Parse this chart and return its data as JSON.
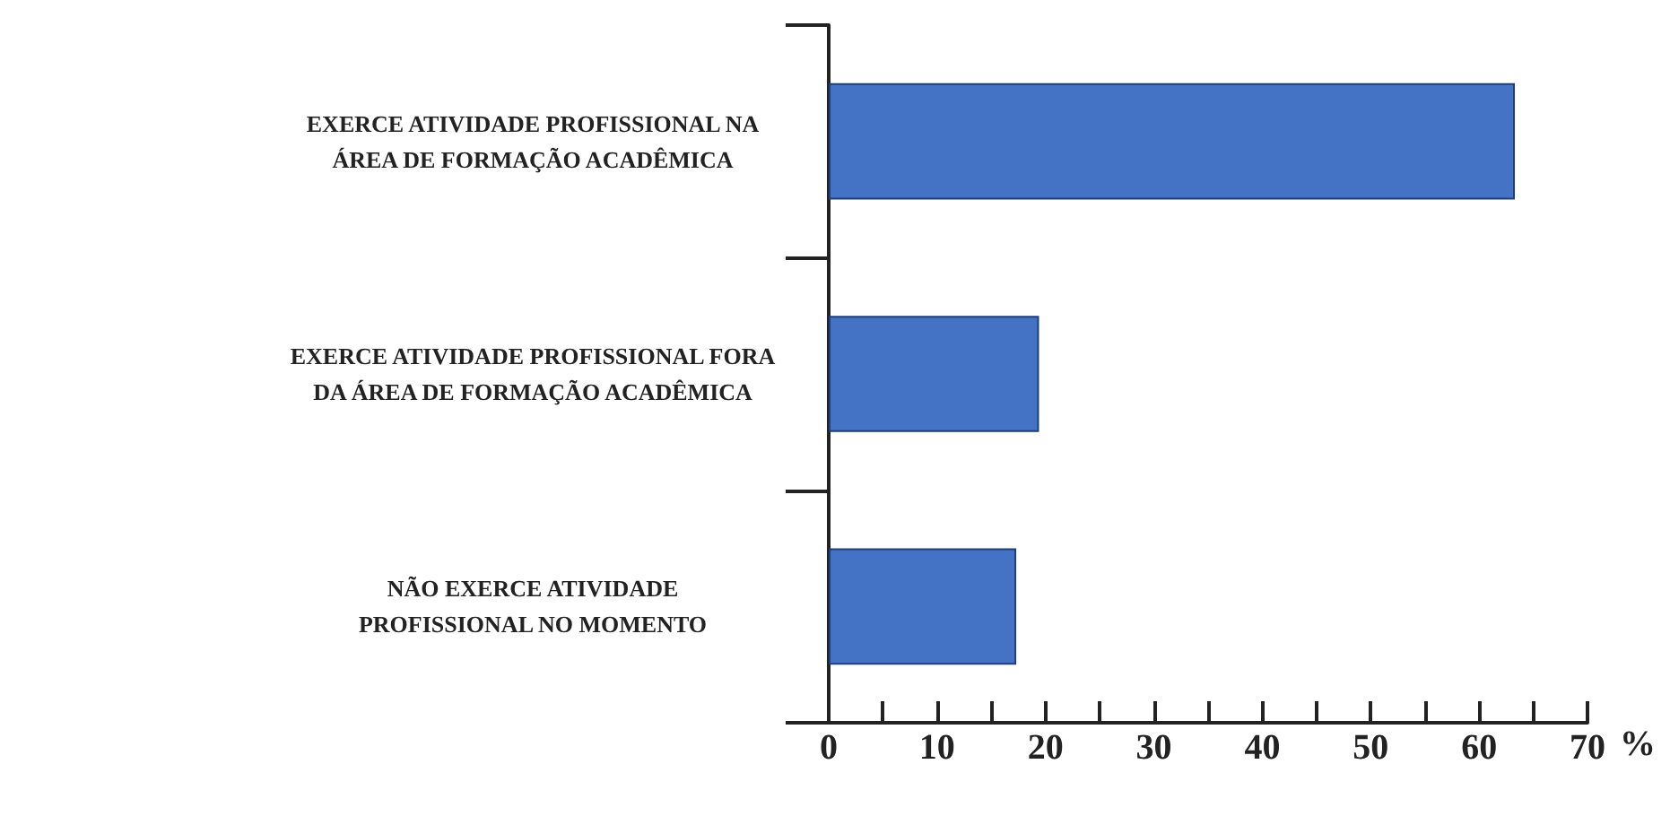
{
  "chart_data": {
    "type": "bar",
    "orientation": "horizontal",
    "categories": [
      "EXERCE ATIVIDADE PROFISSIONAL NA\nÁREA DE FORMAÇÃO ACADÊMICA",
      "EXERCE ATIVIDADE PROFISSIONAL FORA\nDA ÁREA DE FORMAÇÃO ACADÊMICA",
      "NÃO EXERCE ATIVIDADE\nPROFISSIONAL NO MOMENTO"
    ],
    "values": [
      63.3,
      19.4,
      17.3
    ],
    "color": "#4472c4",
    "xlim": [
      0,
      70
    ],
    "xticks": [
      0,
      {
        "value": 5,
        "label": null
      },
      10,
      {
        "value": 15,
        "label": null
      },
      20,
      {
        "value": 25,
        "label": null
      },
      30,
      {
        "value": 35,
        "label": null
      },
      40,
      {
        "value": 45,
        "label": null
      },
      50,
      {
        "value": 55,
        "label": null
      },
      60,
      {
        "value": 65,
        "label": null
      },
      70
    ],
    "xlabel": "%",
    "grid": false
  }
}
